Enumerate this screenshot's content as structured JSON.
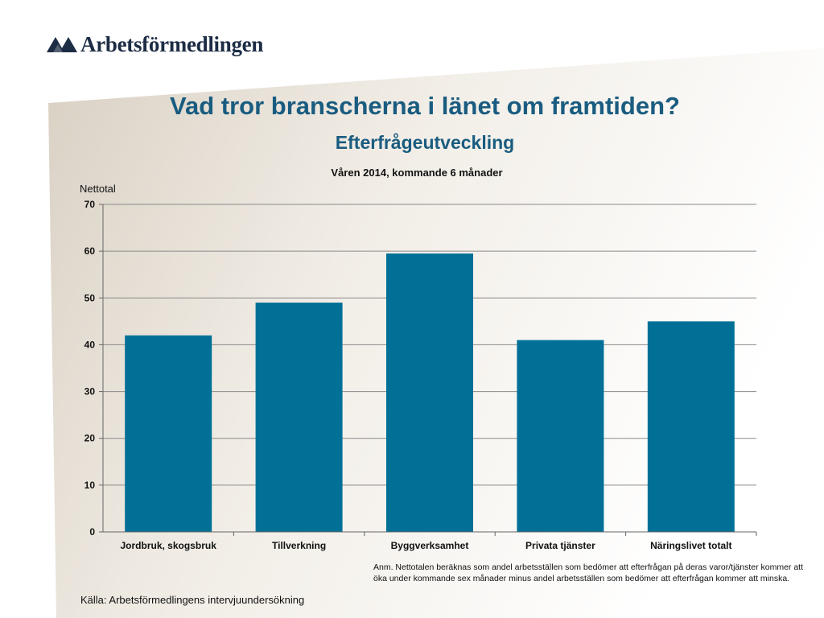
{
  "logo": {
    "text": "Arbetsförmedlingen"
  },
  "title": "Vad tror branscherna i länet om framtiden?",
  "subtitle": "Efterfrågeutveckling",
  "colors": {
    "bar": "#007097",
    "title": "#1a5c80",
    "logo": "#1c2c44"
  },
  "chart_data": {
    "type": "bar",
    "title": "Våren 2014, kommande  6 månader",
    "ylabel": "Nettotal",
    "xlabel": "",
    "categories": [
      "Jordbruk, skogsbruk",
      "Tillverkning",
      "Byggverksamhet",
      "Privata tjänster",
      "Näringslivet totalt"
    ],
    "values": [
      42,
      49,
      59.5,
      41,
      45
    ],
    "ylim": [
      0,
      70
    ],
    "yticks": [
      0,
      10,
      20,
      30,
      40,
      50,
      60,
      70
    ],
    "grid": true
  },
  "note": "Anm. Nettotalen beräknas som andel arbetsställen som bedömer att efterfrågan på deras varor/tjänster kommer att öka under kommande sex månader minus andel arbetsställen som bedömer att efterfrågan kommer att minska.",
  "source": "Källa: Arbetsförmedlingens intervjuundersökning"
}
